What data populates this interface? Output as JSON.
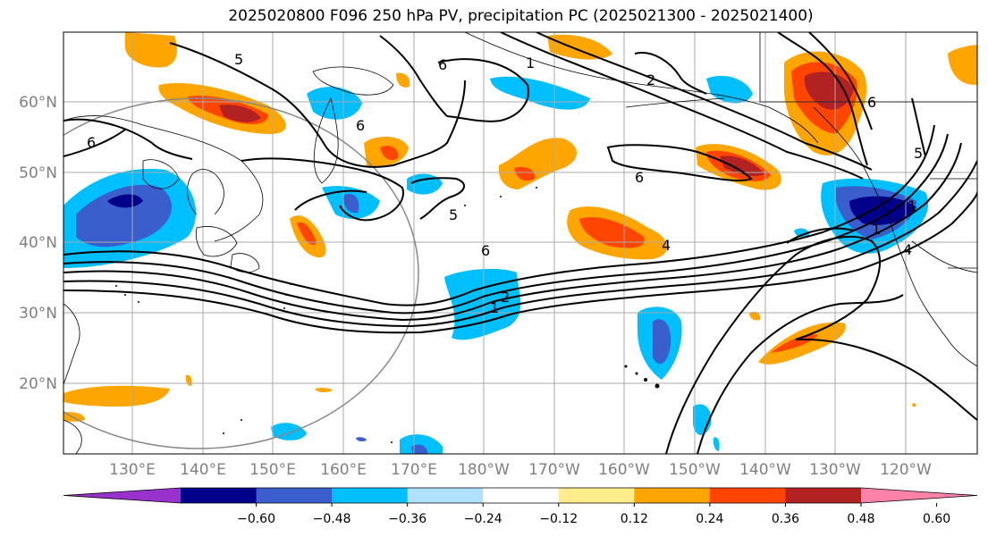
{
  "title": "2025020800 F096 250 hPa PV, precipitation PC (2025021300 - 2025021400)",
  "lat_labels": [
    "60°N",
    "50°N",
    "40°N",
    "30°N",
    "20°N"
  ],
  "lon_labels": [
    "130°E",
    "140°E",
    "150°E",
    "160°E",
    "170°E",
    "180°W",
    "170°W",
    "160°W",
    "150°W",
    "140°W",
    "130°W",
    "120°W"
  ],
  "colorbar": {
    "ticks": [
      "−0.60",
      "−0.48",
      "−0.36",
      "−0.24",
      "−0.12",
      "0.12",
      "0.24",
      "0.36",
      "0.48",
      "0.60"
    ],
    "colors": [
      "#9932cc",
      "#00008b",
      "#3a5fcd",
      "#00bfff",
      "#b0e2ff",
      "#ffffff",
      "#ffec8b",
      "#ffa500",
      "#ff4500",
      "#b22222",
      "#ff82ab"
    ]
  },
  "contour_labels": [
    "5",
    "6",
    "6",
    "2",
    "6",
    "6",
    "5",
    "6",
    "1",
    "2",
    "4",
    "1",
    "4",
    "6",
    "1",
    "5",
    "1"
  ]
}
